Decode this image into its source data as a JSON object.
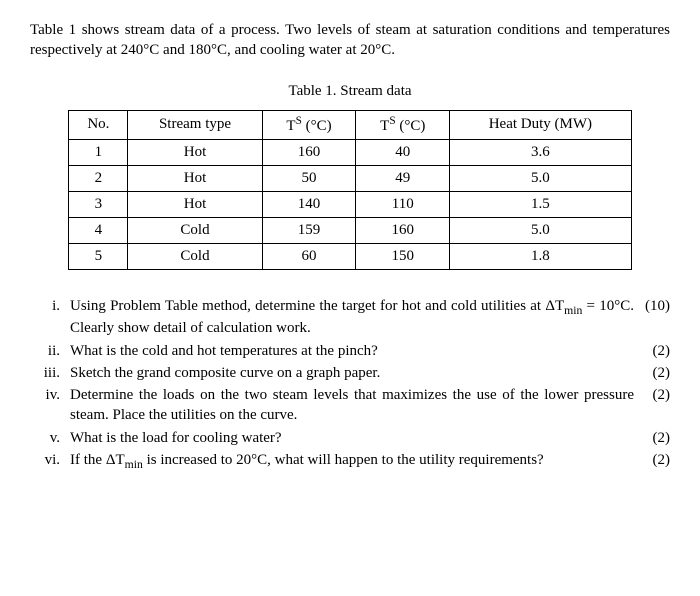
{
  "intro": "Table 1 shows stream data of a process. Two levels of steam at saturation conditions and temperatures respectively at 240°C and 180°C, and cooling water at 20°C.",
  "table": {
    "caption": "Table 1. Stream data",
    "headers": {
      "no": "No.",
      "type": "Stream type",
      "ts_supply_html": "T<sup>S</sup> (°C)",
      "ts_target_html": "T<sup>S</sup> (°C)",
      "duty": "Heat Duty (MW)"
    },
    "rows": [
      {
        "no": "1",
        "type": "Hot",
        "ts": "160",
        "tt": "40",
        "duty": "3.6"
      },
      {
        "no": "2",
        "type": "Hot",
        "ts": "50",
        "tt": "49",
        "duty": "5.0"
      },
      {
        "no": "3",
        "type": "Hot",
        "ts": "140",
        "tt": "110",
        "duty": "1.5"
      },
      {
        "no": "4",
        "type": "Cold",
        "ts": "159",
        "tt": "160",
        "duty": "5.0"
      },
      {
        "no": "5",
        "type": "Cold",
        "ts": "60",
        "tt": "150",
        "duty": "1.8"
      }
    ]
  },
  "questions": [
    {
      "num": "i.",
      "text_html": "Using Problem Table method, determine the target for hot and cold utilities at ΔT<sub>min</sub> = 10°C. Clearly show detail of calculation work.",
      "marks": "(10)"
    },
    {
      "num": "ii.",
      "text_html": "What is the cold and hot temperatures at the pinch?",
      "marks": "(2)"
    },
    {
      "num": "iii.",
      "text_html": "Sketch the grand composite curve on a graph paper.",
      "marks": "(2)"
    },
    {
      "num": "iv.",
      "text_html": "Determine the loads on the two steam levels that maximizes the use of the lower pressure steam. Place the utilities on the curve.",
      "marks": "(2)"
    },
    {
      "num": "v.",
      "text_html": "What is the load for cooling water?",
      "marks": "(2)"
    },
    {
      "num": "vi.",
      "text_html": "If the ΔT<sub>min</sub> is increased to 20°C, what will happen to the utility requirements?",
      "marks": "(2)"
    }
  ]
}
